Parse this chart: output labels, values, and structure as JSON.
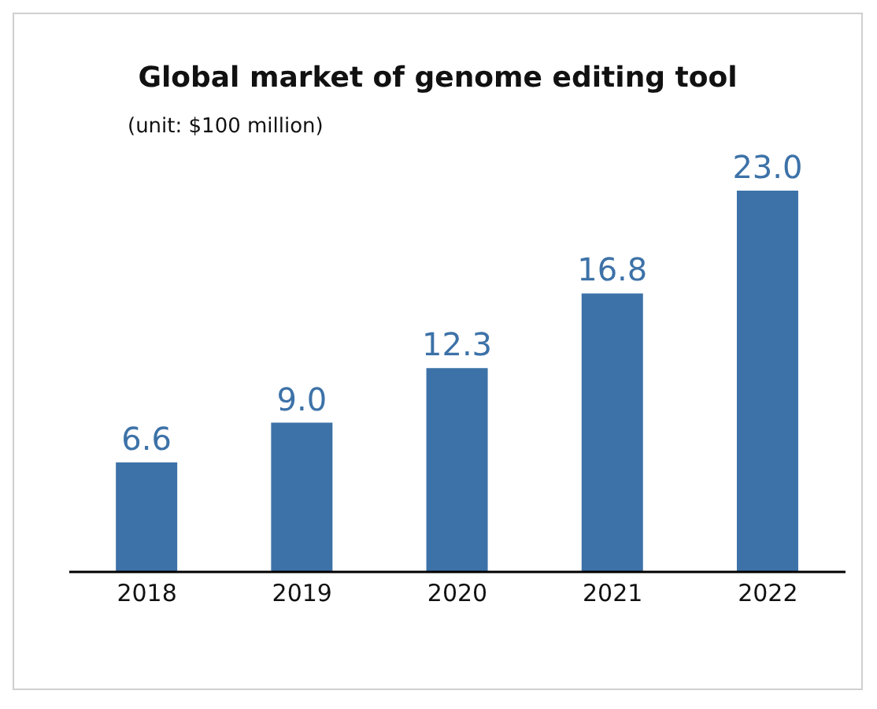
{
  "chart_data": {
    "type": "bar",
    "title": "Global market of genome editing tool",
    "subtitle": "(unit: $100 million)",
    "categories": [
      "2018",
      "2019",
      "2020",
      "2021",
      "2022"
    ],
    "values": [
      6.6,
      9.0,
      12.3,
      16.8,
      23.0
    ],
    "value_labels": [
      "6.6",
      "9.0",
      "12.3",
      "16.8",
      "23.0"
    ],
    "color": "#3d72a8"
  }
}
